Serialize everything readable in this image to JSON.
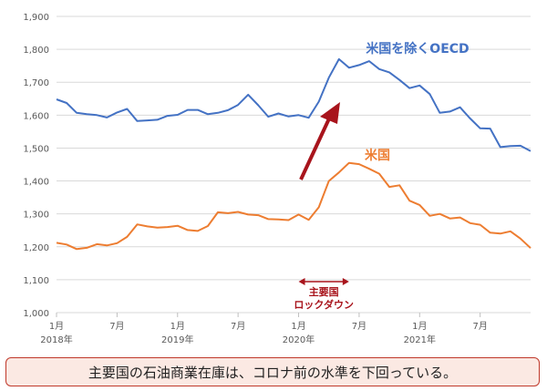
{
  "chart_data": {
    "type": "line",
    "x": [
      "2018-01",
      "2018-02",
      "2018-03",
      "2018-04",
      "2018-05",
      "2018-06",
      "2018-07",
      "2018-08",
      "2018-09",
      "2018-10",
      "2018-11",
      "2018-12",
      "2019-01",
      "2019-02",
      "2019-03",
      "2019-04",
      "2019-05",
      "2019-06",
      "2019-07",
      "2019-08",
      "2019-09",
      "2019-10",
      "2019-11",
      "2019-12",
      "2020-01",
      "2020-02",
      "2020-03",
      "2020-04",
      "2020-05",
      "2020-06",
      "2020-07",
      "2020-08",
      "2020-09",
      "2020-10",
      "2020-11",
      "2020-12",
      "2021-01",
      "2021-02",
      "2021-03",
      "2021-04",
      "2021-05",
      "2021-06",
      "2021-07",
      "2021-08",
      "2021-09",
      "2021-10",
      "2021-11",
      "2021-12"
    ],
    "series": [
      {
        "name": "米国を除くOECD",
        "color": "#4472c4",
        "values": [
          1648,
          1637,
          1607,
          1603,
          1600,
          1593,
          1608,
          1619,
          1582,
          1584,
          1586,
          1598,
          1601,
          1616,
          1616,
          1603,
          1607,
          1615,
          1631,
          1662,
          1630,
          1595,
          1605,
          1596,
          1600,
          1592,
          1641,
          1714,
          1770,
          1744,
          1752,
          1764,
          1740,
          1730,
          1707,
          1682,
          1690,
          1664,
          1607,
          1611,
          1624,
          1590,
          1560,
          1559,
          1503,
          1506,
          1507,
          1491
        ]
      },
      {
        "name": "米国",
        "color": "#ed7d31",
        "values": [
          1212,
          1207,
          1193,
          1197,
          1208,
          1204,
          1211,
          1230,
          1268,
          1262,
          1258,
          1260,
          1264,
          1251,
          1248,
          1263,
          1305,
          1302,
          1306,
          1298,
          1296,
          1284,
          1283,
          1281,
          1298,
          1282,
          1320,
          1400,
          1426,
          1455,
          1451,
          1437,
          1422,
          1382,
          1387,
          1340,
          1327,
          1294,
          1300,
          1286,
          1289,
          1272,
          1267,
          1243,
          1240,
          1247,
          1225,
          1196
        ]
      }
    ],
    "ylim": [
      1000,
      1900
    ],
    "yticks": [
      "1,000",
      "1,100",
      "1,200",
      "1,300",
      "1,400",
      "1,500",
      "1,600",
      "1,700",
      "1,800",
      "1,900"
    ],
    "xticks": [
      {
        "label": "1月",
        "year": "2018年",
        "index": 0
      },
      {
        "label": "7月",
        "year": "",
        "index": 6
      },
      {
        "label": "1月",
        "year": "2019年",
        "index": 12
      },
      {
        "label": "7月",
        "year": "",
        "index": 18
      },
      {
        "label": "1月",
        "year": "2020年",
        "index": 24
      },
      {
        "label": "7月",
        "year": "",
        "index": 30
      },
      {
        "label": "1月",
        "year": "2021年",
        "index": 36
      },
      {
        "label": "7月",
        "year": "",
        "index": 42
      }
    ],
    "grid": "horizontal",
    "annotations": {
      "lockdown_line1": "主要国",
      "lockdown_line2": "ロックダウン",
      "lockdown_start_index": 24,
      "lockdown_end_index": 29,
      "arrow_color": "#a8141c"
    }
  },
  "caption": "主要国の石油商業在庫は、コロナ前の水準を下回っている。"
}
